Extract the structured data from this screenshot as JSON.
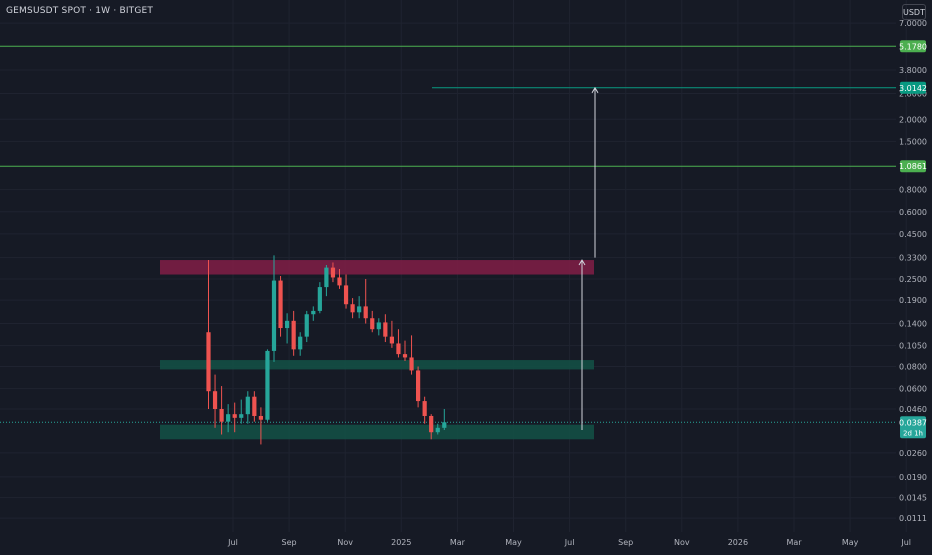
{
  "header": {
    "symbol_title": "GEMSUSDT SPOT · 1W · BITGET",
    "currency_button": "USDT"
  },
  "chart_data": {
    "type": "candlestick",
    "y_scale": "log",
    "y_ticks": [
      "7.0000",
      "3.8000",
      "2.8000",
      "2.0000",
      "1.5000",
      "0.8000",
      "0.6000",
      "0.4500",
      "0.3300",
      "0.2500",
      "0.1900",
      "0.1400",
      "0.1050",
      "0.0800",
      "0.0600",
      "0.0460",
      "0.0260",
      "0.0190",
      "0.0145",
      "0.0111"
    ],
    "x_ticks": [
      "Jul",
      "Sep",
      "Nov",
      "2025",
      "Mar",
      "May",
      "Jul",
      "Sep",
      "Nov",
      "2026",
      "Mar",
      "May",
      "Jul"
    ],
    "horizontal_lines": [
      {
        "value": 5.178,
        "label": "5.1780",
        "color": "#4caf50"
      },
      {
        "value": 3.0142,
        "label": "3.0142",
        "color": "#089981"
      },
      {
        "value": 1.0861,
        "label": "1.0861",
        "color": "#4caf50"
      }
    ],
    "current_price": {
      "value": 0.0387,
      "label": "0.0387",
      "countdown": "2d 1h",
      "color": "#26a69a"
    },
    "zones": [
      {
        "name": "resistance",
        "top": 0.32,
        "bottom": 0.265,
        "color": "#7b1e45"
      },
      {
        "name": "mid-support",
        "top": 0.087,
        "bottom": 0.077,
        "color": "#134f45"
      },
      {
        "name": "support",
        "top": 0.0375,
        "bottom": 0.031,
        "color": "#134f45"
      }
    ],
    "arrows": [
      {
        "from": 0.035,
        "to": 0.32
      },
      {
        "from": 0.33,
        "to": 3.0142
      }
    ],
    "candles": [
      {
        "o": 0.125,
        "h": 0.32,
        "l": 0.046,
        "c": 0.058
      },
      {
        "o": 0.058,
        "h": 0.072,
        "l": 0.036,
        "c": 0.046
      },
      {
        "o": 0.046,
        "h": 0.062,
        "l": 0.033,
        "c": 0.039
      },
      {
        "o": 0.039,
        "h": 0.049,
        "l": 0.034,
        "c": 0.043
      },
      {
        "o": 0.043,
        "h": 0.05,
        "l": 0.034,
        "c": 0.041
      },
      {
        "o": 0.041,
        "h": 0.052,
        "l": 0.038,
        "c": 0.043
      },
      {
        "o": 0.043,
        "h": 0.058,
        "l": 0.038,
        "c": 0.054
      },
      {
        "o": 0.054,
        "h": 0.058,
        "l": 0.039,
        "c": 0.042
      },
      {
        "o": 0.042,
        "h": 0.047,
        "l": 0.029,
        "c": 0.04
      },
      {
        "o": 0.04,
        "h": 0.1,
        "l": 0.039,
        "c": 0.098
      },
      {
        "o": 0.098,
        "h": 0.34,
        "l": 0.085,
        "c": 0.245
      },
      {
        "o": 0.245,
        "h": 0.26,
        "l": 0.118,
        "c": 0.132
      },
      {
        "o": 0.132,
        "h": 0.16,
        "l": 0.108,
        "c": 0.145
      },
      {
        "o": 0.145,
        "h": 0.165,
        "l": 0.092,
        "c": 0.1
      },
      {
        "o": 0.1,
        "h": 0.125,
        "l": 0.092,
        "c": 0.118
      },
      {
        "o": 0.118,
        "h": 0.165,
        "l": 0.11,
        "c": 0.158
      },
      {
        "o": 0.158,
        "h": 0.175,
        "l": 0.145,
        "c": 0.165
      },
      {
        "o": 0.165,
        "h": 0.24,
        "l": 0.16,
        "c": 0.225
      },
      {
        "o": 0.225,
        "h": 0.3,
        "l": 0.2,
        "c": 0.29
      },
      {
        "o": 0.29,
        "h": 0.31,
        "l": 0.24,
        "c": 0.255
      },
      {
        "o": 0.255,
        "h": 0.285,
        "l": 0.22,
        "c": 0.23
      },
      {
        "o": 0.23,
        "h": 0.265,
        "l": 0.17,
        "c": 0.18
      },
      {
        "o": 0.18,
        "h": 0.195,
        "l": 0.15,
        "c": 0.162
      },
      {
        "o": 0.162,
        "h": 0.2,
        "l": 0.15,
        "c": 0.175
      },
      {
        "o": 0.175,
        "h": 0.25,
        "l": 0.14,
        "c": 0.15
      },
      {
        "o": 0.15,
        "h": 0.165,
        "l": 0.125,
        "c": 0.13
      },
      {
        "o": 0.13,
        "h": 0.15,
        "l": 0.12,
        "c": 0.142
      },
      {
        "o": 0.142,
        "h": 0.158,
        "l": 0.11,
        "c": 0.118
      },
      {
        "o": 0.118,
        "h": 0.145,
        "l": 0.102,
        "c": 0.108
      },
      {
        "o": 0.108,
        "h": 0.13,
        "l": 0.09,
        "c": 0.094
      },
      {
        "o": 0.094,
        "h": 0.112,
        "l": 0.086,
        "c": 0.09
      },
      {
        "o": 0.09,
        "h": 0.12,
        "l": 0.072,
        "c": 0.076
      },
      {
        "o": 0.076,
        "h": 0.08,
        "l": 0.047,
        "c": 0.051
      },
      {
        "o": 0.051,
        "h": 0.054,
        "l": 0.038,
        "c": 0.042
      },
      {
        "o": 0.042,
        "h": 0.043,
        "l": 0.031,
        "c": 0.034
      },
      {
        "o": 0.034,
        "h": 0.038,
        "l": 0.033,
        "c": 0.036
      },
      {
        "o": 0.036,
        "h": 0.046,
        "l": 0.035,
        "c": 0.0387
      }
    ],
    "colors": {
      "up": "#26a69a",
      "down": "#ef5350",
      "grid": "#1f2330",
      "axis_text": "#b2b5be"
    }
  }
}
